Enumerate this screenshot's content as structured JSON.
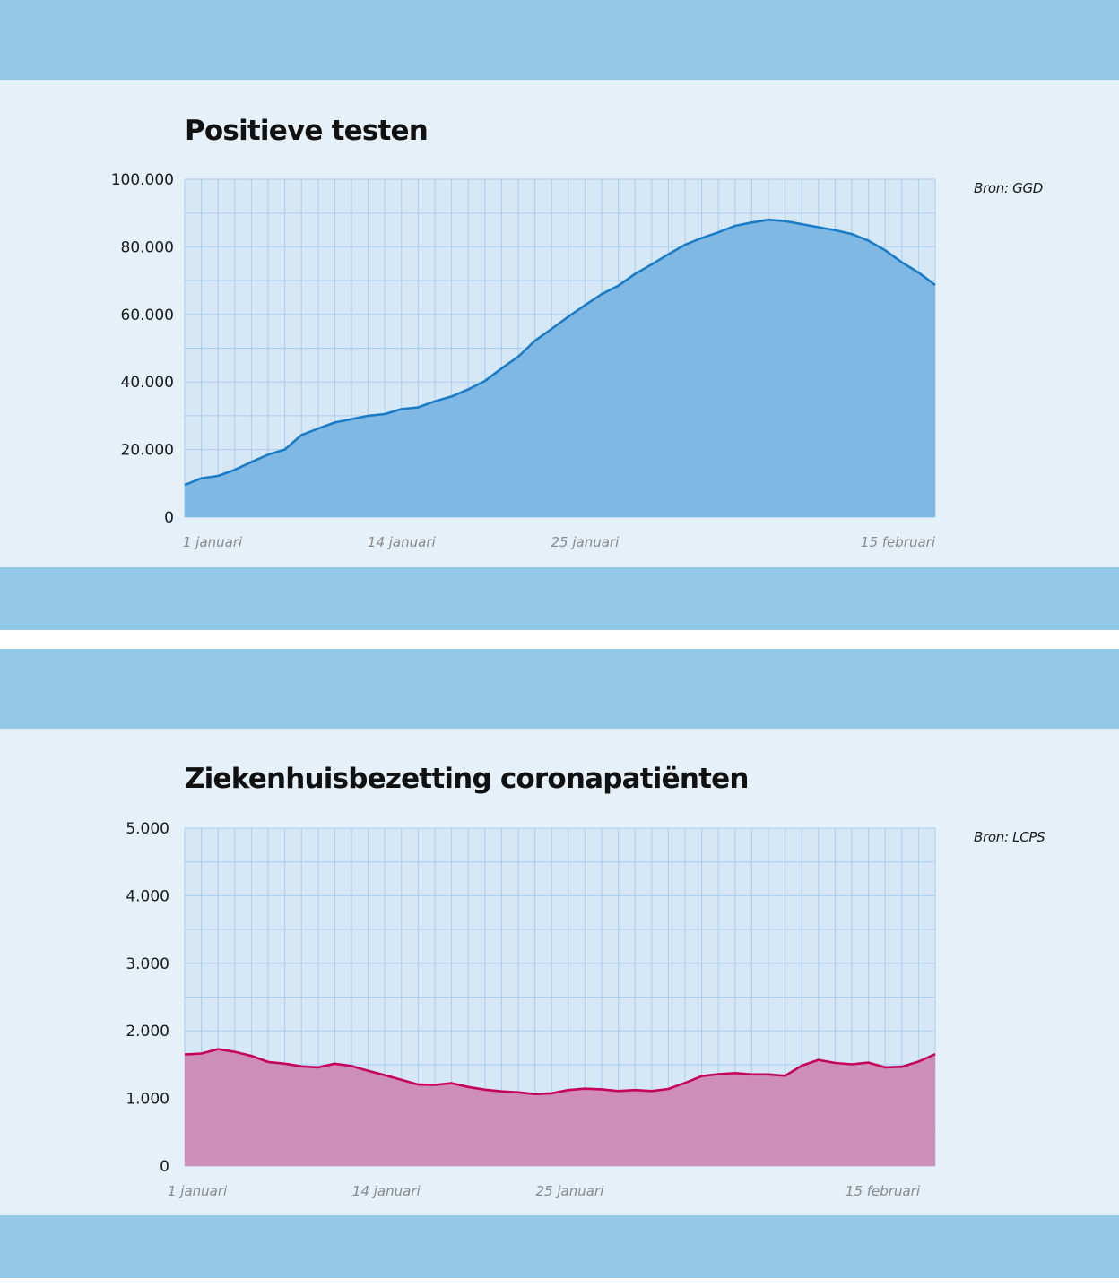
{
  "chart_data": [
    {
      "type": "area",
      "title": "Positieve testen",
      "source": "Bron: GGD",
      "xlabel": "",
      "ylabel": "",
      "ylim": [
        0,
        100000
      ],
      "yticks": [
        "0",
        "20.000",
        "40.000",
        "60.000",
        "80.000",
        "100.000"
      ],
      "yticks_values": [
        0,
        20000,
        40000,
        60000,
        80000,
        100000
      ],
      "x_start": "2022-01-01",
      "x_end": "2022-02-15",
      "xtick_labels": [
        {
          "date": "2022-01-01",
          "label": "1 januari"
        },
        {
          "date": "2022-01-14",
          "label": "14 januari"
        },
        {
          "date": "2022-01-25",
          "label": "25 januari"
        },
        {
          "date": "2022-02-15",
          "label": "15 februari"
        }
      ],
      "grid": true,
      "colors": {
        "line": "#1a7cc6",
        "fill": "#7ab6e2",
        "plot_bg": "#d6e8f6",
        "grid": "#a9cdf0"
      },
      "values": [
        9500,
        11500,
        12200,
        14000,
        16300,
        18500,
        20000,
        24300,
        26200,
        28000,
        29000,
        30000,
        30500,
        32000,
        32500,
        34300,
        35700,
        37800,
        40300,
        44000,
        47500,
        52200,
        55700,
        59300,
        62700,
        66000,
        68500,
        72000,
        74800,
        77800,
        80600,
        82600,
        84300,
        86200,
        87200,
        88000,
        87600,
        86700,
        85800,
        84900,
        83800,
        81800,
        79000,
        75400,
        72400,
        68700
      ]
    },
    {
      "type": "area",
      "title": "Ziekenhuisbezetting coronapatiënten",
      "source": "Bron: LCPS",
      "xlabel": "",
      "ylabel": "",
      "ylim": [
        0,
        5000
      ],
      "yticks": [
        "0",
        "1.000",
        "2.000",
        "3.000",
        "4.000",
        "5.000"
      ],
      "yticks_values": [
        0,
        1000,
        2000,
        3000,
        4000,
        5000
      ],
      "x_start": "2022-01-01",
      "x_end": "2022-02-15",
      "xtick_labels": [
        {
          "date": "2022-01-01",
          "label": "1 januari"
        },
        {
          "date": "2022-01-14",
          "label": "14 januari"
        },
        {
          "date": "2022-01-25",
          "label": "25 januari"
        },
        {
          "date": "2022-02-15",
          "label": "15 februari"
        }
      ],
      "grid": true,
      "colors": {
        "line": "#c4005a",
        "fill": "#ce89b6",
        "plot_bg": "#d6e8f6",
        "grid": "#a9cdf0"
      },
      "values": [
        1650,
        1665,
        1730,
        1690,
        1630,
        1540,
        1515,
        1475,
        1460,
        1515,
        1480,
        1410,
        1345,
        1275,
        1205,
        1200,
        1225,
        1170,
        1130,
        1105,
        1090,
        1065,
        1075,
        1125,
        1145,
        1135,
        1110,
        1125,
        1110,
        1140,
        1230,
        1330,
        1360,
        1375,
        1355,
        1355,
        1335,
        1485,
        1570,
        1525,
        1505,
        1530,
        1460,
        1470,
        1545,
        1655
      ]
    }
  ]
}
